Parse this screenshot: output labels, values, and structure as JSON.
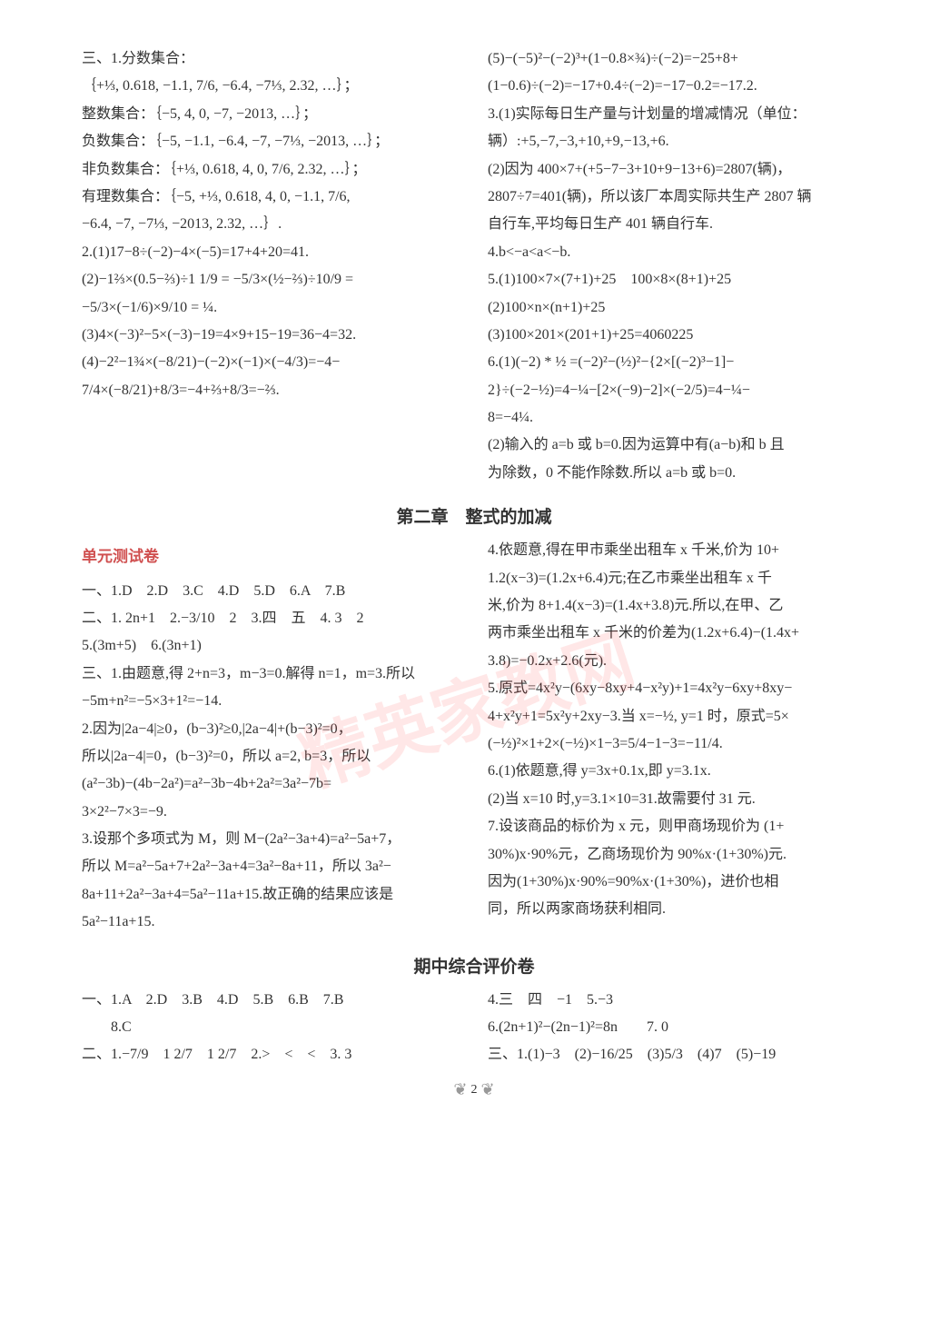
{
  "watermark_text": "精英家教网",
  "page_number": "2",
  "section1": {
    "left": {
      "header": "三、1.分数集合：",
      "sets": [
        "｛+⅓, 0.618, −1.1, 7/6, −6.4, −7⅓, 2.32, …｝；",
        "整数集合：｛−5, 4, 0, −7, −2013, …｝；",
        "负数集合：｛−5, −1.1, −6.4, −7, −7⅓, −2013, …｝；",
        "非负数集合：｛+⅓, 0.618, 4, 0, 7/6, 2.32, …｝；",
        "有理数集合：｛−5, +⅓, 0.618, 4, 0, −1.1, 7/6,",
        "−6.4, −7, −7⅓, −2013, 2.32, …｝."
      ],
      "calc": [
        "2.(1)17−8÷(−2)−4×(−5)=17+4+20=41.",
        "(2)−1⅔×(0.5−⅔)÷1 1/9 = −5/3×(½−⅔)÷10/9 =",
        "−5/3×(−1/6)×9/10 = ¼.",
        "(3)4×(−3)²−5×(−3)−19=4×9+15−19=36−4=32.",
        "(4)−2²−1¾×(−8/21)−(−2)×(−1)×(−4/3)=−4−",
        "7/4×(−8/21)+8/3=−4+⅔+8/3=−⅔."
      ]
    },
    "right": {
      "lines": [
        "(5)−(−5)²−(−2)³+(1−0.8×¾)÷(−2)=−25+8+",
        "(1−0.6)÷(−2)=−17+0.4÷(−2)=−17−0.2=−17.2.",
        "3.(1)实际每日生产量与计划量的增减情况（单位：",
        "辆）:+5,−7,−3,+10,+9,−13,+6.",
        "(2)因为 400×7+(+5−7−3+10+9−13+6)=2807(辆)，",
        "2807÷7=401(辆)，所以该厂本周实际共生产 2807 辆",
        "自行车,平均每日生产 401 辆自行车.",
        "4.b<−a<a<−b.",
        "5.(1)100×7×(7+1)+25　100×8×(8+1)+25",
        "(2)100×n×(n+1)+25",
        "(3)100×201×(201+1)+25=4060225",
        "6.(1)(−2) * ½ =(−2)²−(½)²−{2×[(−2)³−1]−",
        "2}÷(−2−½)=4−¼−[2×(−9)−2]×(−2/5)=4−¼−",
        "8=−4¼.",
        "(2)输入的 a=b 或 b=0.因为运算中有(a−b)和 b 且",
        "为除数，0 不能作除数.所以 a=b 或 b=0."
      ]
    }
  },
  "chapter2": {
    "title": "第二章　整式的加减",
    "unit_title": "单元测试卷",
    "left": {
      "row1": "一、1.D　2.D　3.C　4.D　5.D　6.A　7.B",
      "row2": "二、1. 2n+1　2.−3/10　2　3.四　五　4. 3　2",
      "row3": "5.(3m+5)　6.(3n+1)",
      "san": [
        "三、1.由题意,得 2+n=3，m−3=0.解得 n=1，m=3.所以",
        "−5m+n²=−5×3+1²=−14.",
        "2.因为|2a−4|≥0，(b−3)²≥0,|2a−4|+(b−3)²=0，",
        "所以|2a−4|=0，(b−3)²=0，所以 a=2, b=3，所以",
        "(a²−3b)−(4b−2a²)=a²−3b−4b+2a²=3a²−7b=",
        "3×2²−7×3=−9.",
        "3.设那个多项式为 M，则 M−(2a²−3a+4)=a²−5a+7，",
        "所以 M=a²−5a+7+2a²−3a+4=3a²−8a+11，所以 3a²−",
        "8a+11+2a²−3a+4=5a²−11a+15.故正确的结果应该是",
        "5a²−11a+15."
      ]
    },
    "right": {
      "lines": [
        "4.依题意,得在甲市乘坐出租车 x 千米,价为 10+",
        "1.2(x−3)=(1.2x+6.4)元;在乙市乘坐出租车 x 千",
        "米,价为 8+1.4(x−3)=(1.4x+3.8)元.所以,在甲、乙",
        "两市乘坐出租车 x 千米的价差为(1.2x+6.4)−(1.4x+",
        "3.8)=−0.2x+2.6(元).",
        "5.原式=4x²y−(6xy−8xy+4−x²y)+1=4x²y−6xy+8xy−",
        "4+x²y+1=5x²y+2xy−3.当 x=−½, y=1 时，原式=5×",
        "(−½)²×1+2×(−½)×1−3=5/4−1−3=−11/4.",
        "6.(1)依题意,得 y=3x+0.1x,即 y=3.1x.",
        "(2)当 x=10 时,y=3.1×10=31.故需要付 31 元.",
        "7.设该商品的标价为 x 元，则甲商场现价为 (1+",
        "30%)x·90%元，乙商场现价为 90%x·(1+30%)元.",
        "因为(1+30%)x·90%=90%x·(1+30%)，进价也相",
        "同，所以两家商场获利相同."
      ]
    }
  },
  "midterm": {
    "title": "期中综合评价卷",
    "left": {
      "lines": [
        "一、1.A　2.D　3.B　4.D　5.B　6.B　7.B",
        "　　8.C",
        "二、1.−7/9　1 2/7　1 2/7　2.>　<　<　3. 3"
      ]
    },
    "right": {
      "lines": [
        "4.三　四　−1　5.−3",
        "6.(2n+1)²−(2n−1)²=8n　　7. 0",
        "三、1.(1)−3　(2)−16/25　(3)5/3　(4)7　(5)−19"
      ]
    }
  },
  "colors": {
    "text": "#333333",
    "watermark": "rgba(255,60,60,0.12)",
    "accent": "#d05050",
    "background": "#ffffff"
  }
}
